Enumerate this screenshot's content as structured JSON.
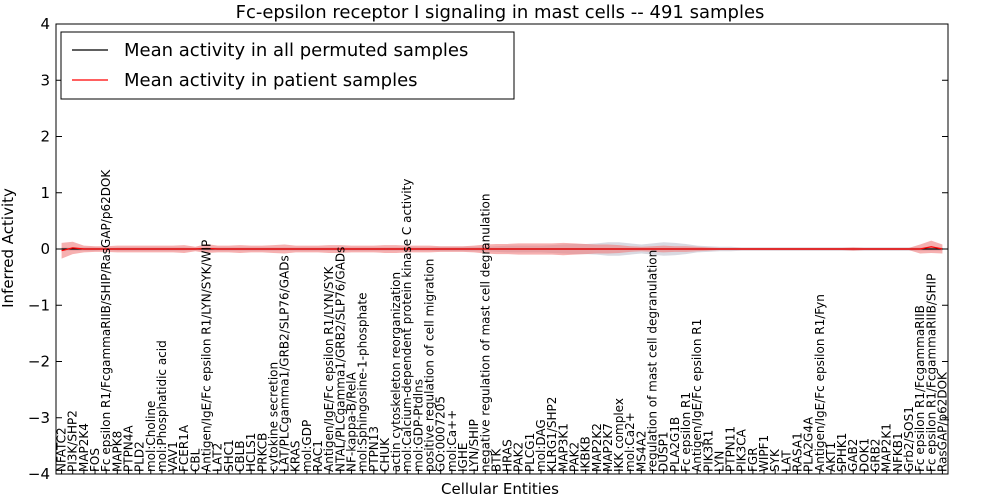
{
  "chart_data": {
    "type": "line",
    "title": "Fc-epsilon receptor I signaling in mast cells -- 491 samples",
    "xlabel": "Cellular Entities",
    "ylabel": "Inferred Activity",
    "ylim": [
      -4,
      4
    ],
    "yticks": [
      "4",
      "3",
      "2",
      "1",
      "0",
      "−1",
      "−2",
      "−3",
      "−4"
    ],
    "legend": {
      "placement": "top-left",
      "entries": [
        {
          "label": "Mean activity in all permuted samples",
          "color": "#000000"
        },
        {
          "label": "Mean activity in patient samples",
          "color": "#ff0000"
        }
      ]
    },
    "categories": [
      "NFATC2",
      "PI3K/SHP2",
      "MAP2K4",
      "FOS",
      "Fc epsilon R1/FcgammaRIIB/SHIP/RasGAP/p62DOK",
      "MAPK8",
      "PTPN4A",
      "PLD2",
      "mol:Choline",
      "mol:Phosphatidic acid",
      "VAV1",
      "FCER1A",
      "CBL",
      "Antigen/IgE/Fc epsilon R1/LYN/SYK/WIP",
      "LAT2",
      "SHC1",
      "CBLB",
      "HCLS1",
      "PRKCB",
      "cytokine secretion",
      "LAT/PLCgamma1/GRB2/SLP76/GADs",
      "KRAS",
      "mol:GDP",
      "RAC1",
      "Antigen/IgE/Fc epsilon R1/LYN/SYK",
      "NTAL/PLCgamma1/GRB2/SLP76/GADs",
      "NF-kappa-B/RelA",
      "mol:Sphingosine-1-phosphate",
      "PTPN13",
      "CHUK",
      "actin cytoskeleton reorganization",
      "mol:Calcium-dependent protein kinase C activity",
      "mol:GDP-Ptdlns",
      "positive regulation of cell migration",
      "GO:0007205",
      "mol:Ca++",
      "IGHE",
      "LYN/SHIP",
      "negative regulation of mast cell degranulation",
      "BTK",
      "HRAS",
      "PAK2",
      "PLCG1",
      "mol:DAG",
      "KLRG1/SHP2",
      "MAP3K1",
      "PAK2",
      "IKBKB",
      "MAP2K2",
      "MAP2K7",
      "IKK complex",
      "mol:Ca2+",
      "MS4A2",
      "regulation of mast cell degranulation",
      "DUSP1",
      "PLA2G1B",
      "Fc epsilon R1",
      "Antigen/IgE/Fc epsilon R1",
      "PIK3R1",
      "LYN",
      "PTPN11",
      "PIK3CA",
      "FGR",
      "WIPF1",
      "SYK",
      "LAT",
      "RASA1",
      "PLA2G4A",
      "Antigen/IgE/Fc epsilon R1/Fyn",
      "AKT1",
      "SPHK1",
      "GAB2",
      "DOK1",
      "GRB2",
      "MAP2K1",
      "NFKB1",
      "Grb2/SOS1",
      "Fc epsilon R1/FcgammaRIIB",
      "Fc epsilon R1/FcgammaRIIB/SHIP",
      "RasGAP/p62DOK"
    ],
    "series": [
      {
        "name": "Mean activity in all permuted samples",
        "color": "#000000",
        "values": [
          0,
          0,
          0,
          0,
          0,
          0,
          0,
          0,
          0,
          0,
          0,
          0,
          0,
          0,
          0,
          0,
          0,
          0,
          0,
          0,
          0,
          0,
          0,
          0,
          0,
          0,
          0,
          0,
          0,
          0,
          0,
          0,
          0,
          0,
          0,
          0,
          0,
          0,
          0,
          0,
          0,
          0,
          0,
          0,
          0,
          0,
          0,
          0,
          0,
          0,
          0,
          0,
          0,
          0,
          0,
          0,
          0,
          0,
          0,
          0,
          0,
          0,
          0,
          0,
          0,
          0,
          0,
          0,
          0,
          0,
          0,
          0,
          0,
          0,
          0,
          0,
          0,
          0,
          0,
          0
        ],
        "band": [
          0.03,
          0.03,
          0.03,
          0.03,
          0.02,
          0.03,
          0.03,
          0.03,
          0.03,
          0.03,
          0.03,
          0.03,
          0.02,
          0.03,
          0.03,
          0.03,
          0.03,
          0.03,
          0.03,
          0.03,
          0.03,
          0.03,
          0.03,
          0.03,
          0.03,
          0.03,
          0.03,
          0.03,
          0.03,
          0.03,
          0.03,
          0.03,
          0.03,
          0.03,
          0.04,
          0.04,
          0.04,
          0.04,
          0.04,
          0.05,
          0.06,
          0.06,
          0.06,
          0.06,
          0.07,
          0.08,
          0.09,
          0.09,
          0.1,
          0.12,
          0.12,
          0.1,
          0.08,
          0.1,
          0.12,
          0.11,
          0.09,
          0.06,
          0.05,
          0.04,
          0.04,
          0.03,
          0.03,
          0.03,
          0.03,
          0.03,
          0.03,
          0.03,
          0.03,
          0.03,
          0.03,
          0.03,
          0.03,
          0.03,
          0.03,
          0.03,
          0.03,
          0.03,
          0.03,
          0.03
        ]
      },
      {
        "name": "Mean activity in patient samples",
        "color": "#ff0000",
        "values": [
          -0.03,
          0.02,
          0,
          0,
          0,
          0,
          0,
          0,
          0,
          0,
          0,
          0,
          0,
          0.01,
          0,
          0,
          0,
          0,
          0,
          0,
          0,
          0,
          0,
          0,
          0,
          0,
          0,
          0,
          0,
          0,
          0,
          0,
          0,
          0,
          0,
          0,
          0,
          0,
          0,
          0,
          0,
          0,
          0,
          0,
          0,
          0,
          0,
          0,
          0,
          0,
          0,
          0,
          0,
          0,
          0,
          0,
          0,
          0,
          0,
          0,
          0,
          0,
          0,
          0,
          0,
          0,
          0,
          0,
          0,
          0,
          0,
          0,
          0,
          0,
          0,
          0,
          0,
          0,
          0.04,
          0
        ],
        "band": [
          0.14,
          0.11,
          0.06,
          0.05,
          0.05,
          0.06,
          0.06,
          0.06,
          0.06,
          0.06,
          0.06,
          0.07,
          0.04,
          0.08,
          0.06,
          0.06,
          0.07,
          0.06,
          0.06,
          0.07,
          0.08,
          0.06,
          0.06,
          0.06,
          0.07,
          0.07,
          0.06,
          0.06,
          0.06,
          0.07,
          0.07,
          0.06,
          0.06,
          0.06,
          0.05,
          0.05,
          0.05,
          0.06,
          0.08,
          0.09,
          0.09,
          0.1,
          0.1,
          0.1,
          0.1,
          0.11,
          0.1,
          0.09,
          0.08,
          0.08,
          0.07,
          0.05,
          0.04,
          0.05,
          0.06,
          0.05,
          0.05,
          0.04,
          0.03,
          0.02,
          0.02,
          0.02,
          0.02,
          0.02,
          0.02,
          0.02,
          0.02,
          0.02,
          0.02,
          0.02,
          0.02,
          0.03,
          0.02,
          0.02,
          0.02,
          0.02,
          0.02,
          0.08,
          0.11,
          0.08
        ]
      }
    ]
  }
}
